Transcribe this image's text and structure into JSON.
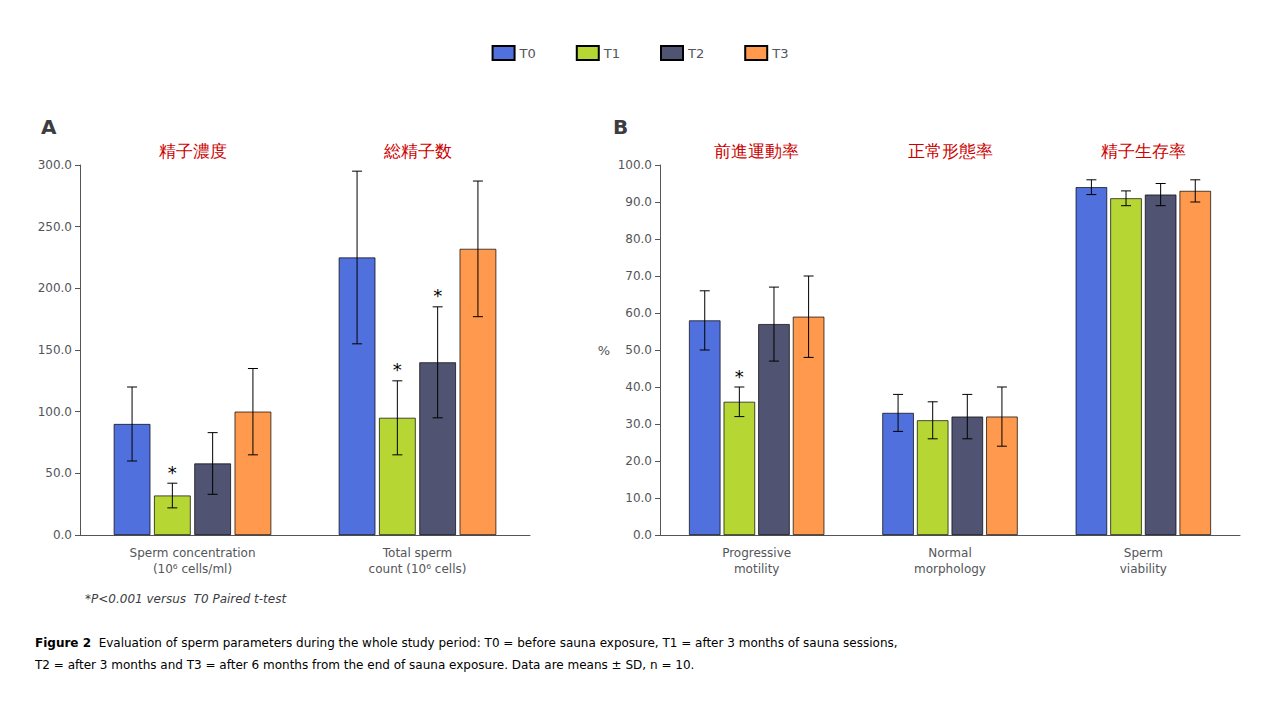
{
  "chart_data": [
    {
      "type": "bar",
      "title": "A",
      "categories": [
        "Sperm concentration\n(10⁶ cells/ml)",
        "Total sperm\ncount (10⁶ cells)"
      ],
      "series": [
        {
          "name": "T0",
          "values": [
            90,
            225
          ],
          "errors": [
            30,
            70
          ]
        },
        {
          "name": "T1",
          "values": [
            32,
            95
          ],
          "errors": [
            10,
            30
          ]
        },
        {
          "name": "T2",
          "values": [
            58,
            140
          ],
          "errors": [
            25,
            45
          ]
        },
        {
          "name": "T3",
          "values": [
            100,
            232
          ],
          "errors": [
            35,
            55
          ]
        }
      ],
      "ylim": [
        0,
        300
      ],
      "yticks": [
        {
          "value": 0,
          "label": "0.0"
        },
        {
          "value": 50,
          "label": "50.0"
        },
        {
          "value": 100,
          "label": "100.0"
        },
        {
          "value": 150,
          "label": "150.0"
        },
        {
          "value": 200,
          "label": "200.0"
        },
        {
          "value": 250,
          "label": "250.0"
        },
        {
          "value": 300,
          "label": "300.0"
        }
      ],
      "grid": false,
      "annotations": [
        {
          "text": "精子濃度",
          "category": 0,
          "color": "#cc0000"
        },
        {
          "text": "総精子数",
          "category": 1,
          "color": "#cc0000"
        },
        {
          "text": "*",
          "category": 0,
          "series": "T1"
        },
        {
          "text": "*",
          "category": 1,
          "series": "T1"
        },
        {
          "text": "*",
          "category": 1,
          "series": "T2"
        }
      ]
    },
    {
      "type": "bar",
      "title": "B",
      "ylabel": "%",
      "categories": [
        "Progressive\nmotility",
        "Normal\nmorphology",
        "Sperm\nviability"
      ],
      "series": [
        {
          "name": "T0",
          "values": [
            58,
            33,
            94
          ],
          "errors": [
            8,
            5,
            2
          ]
        },
        {
          "name": "T1",
          "values": [
            36,
            31,
            91
          ],
          "errors": [
            4,
            5,
            2
          ]
        },
        {
          "name": "T2",
          "values": [
            57,
            32,
            92
          ],
          "errors": [
            10,
            6,
            3
          ]
        },
        {
          "name": "T3",
          "values": [
            59,
            32,
            93
          ],
          "errors": [
            11,
            8,
            3
          ]
        }
      ],
      "ylim": [
        0,
        100
      ],
      "yticks": [
        {
          "value": 0,
          "label": "0.0"
        },
        {
          "value": 10,
          "label": "10.0"
        },
        {
          "value": 20,
          "label": "20.0"
        },
        {
          "value": 30,
          "label": "30.0"
        },
        {
          "value": 40,
          "label": "40.0"
        },
        {
          "value": 50,
          "label": "50.0"
        },
        {
          "value": 60,
          "label": "60.0"
        },
        {
          "value": 70,
          "label": "70.0"
        },
        {
          "value": 80,
          "label": "80.0"
        },
        {
          "value": 90,
          "label": "90.0"
        },
        {
          "value": 100,
          "label": "100.0"
        }
      ],
      "grid": false,
      "annotations": [
        {
          "text": "前進運動率",
          "category": 0,
          "color": "#cc0000"
        },
        {
          "text": "正常形態率",
          "category": 1,
          "color": "#cc0000"
        },
        {
          "text": "精子生存率",
          "category": 2,
          "color": "#cc0000"
        },
        {
          "text": "*",
          "category": 0,
          "series": "T1"
        }
      ]
    }
  ],
  "legend": "top",
  "footnote": "*P<0.001 versus  T0 Paired t-test",
  "caption": {
    "title": "Figure 2",
    "text": "  Evaluation of sperm parameters during the whole study period: T0 = before sauna exposure, T1 = after 3 months of sauna sessions,\nT2 = after 3 months and T3 = after 6 months from the end of sauna exposure. Data are means ± SD, n = 10."
  }
}
